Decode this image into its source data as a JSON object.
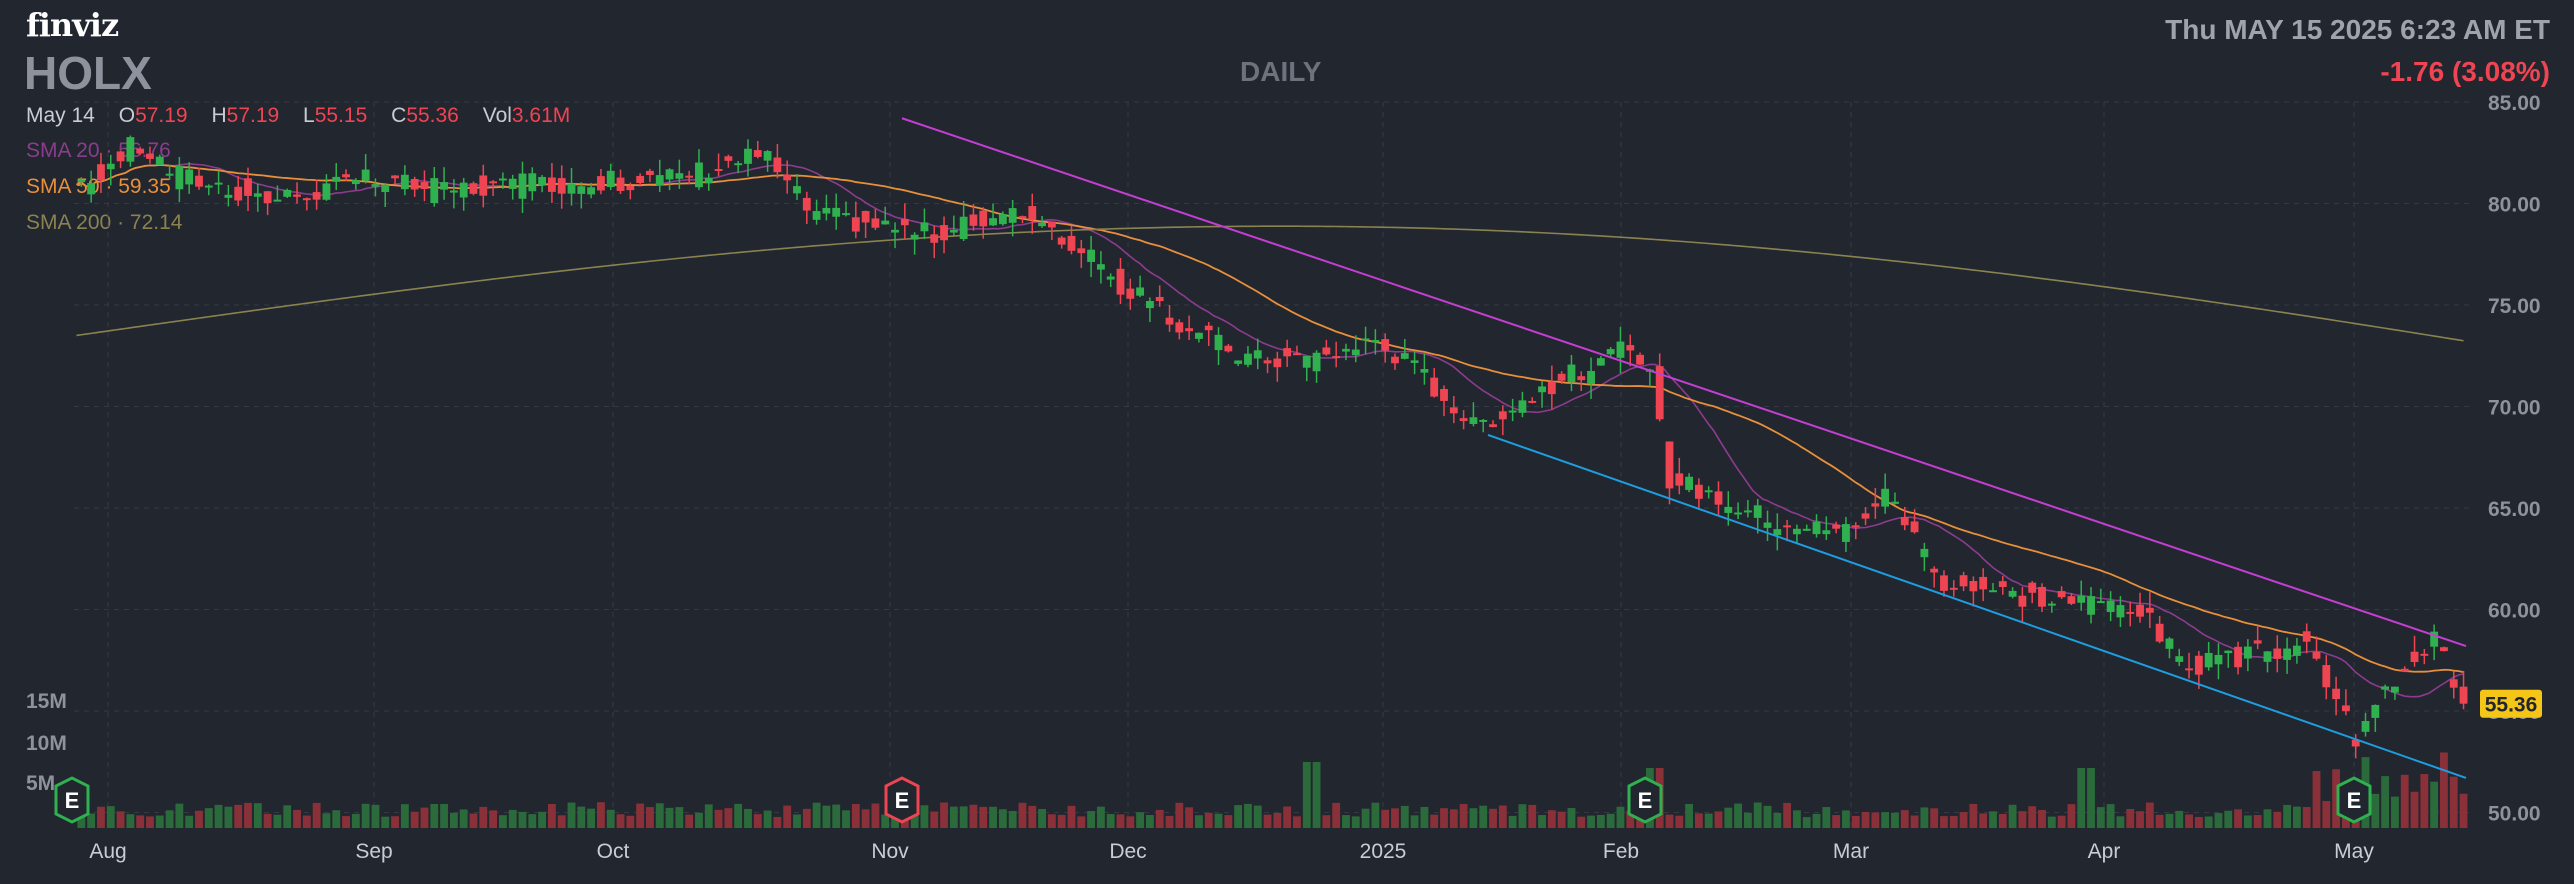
{
  "header": {
    "logo": "finviz",
    "ticker": "HOLX",
    "period": "DAILY",
    "datetime": "Thu MAY 15 2025 6:23 AM ET",
    "change": "-1.76 (3.08%)"
  },
  "ohlc": {
    "date": "May 14",
    "open": "57.19",
    "high": "57.19",
    "low": "55.15",
    "close": "55.36",
    "volume": "3.61M"
  },
  "sma": [
    {
      "label": "SMA 20",
      "value": "56.76",
      "color": "#8c3c8f"
    },
    {
      "label": "SMA 50",
      "value": "59.35",
      "color": "#e88f3a"
    },
    {
      "label": "SMA 200",
      "value": "72.14",
      "color": "#8a8350"
    }
  ],
  "colors": {
    "up": "#2fb14f",
    "down": "#ef4452",
    "resistance": "#c43fd1",
    "support": "#1e9de0",
    "last_price_bg": "#f5c518"
  },
  "chart_data": {
    "type": "candlestick",
    "y_ticks": [
      "85.00",
      "80.00",
      "75.00",
      "70.00",
      "65.00",
      "60.00",
      "55.00",
      "50.00"
    ],
    "ylim": [
      49.5,
      85
    ],
    "volume_ticks": [
      "15M",
      "10M",
      "5M"
    ],
    "x_months": [
      "Aug",
      "Sep",
      "Oct",
      "Nov",
      "Dec",
      "2025",
      "Feb",
      "Mar",
      "Apr",
      "May"
    ],
    "last_price": "55.36",
    "earnings_markers": [
      {
        "label": "E",
        "month_index": 0,
        "color": "#2fb14f"
      },
      {
        "label": "E",
        "month_index": 3,
        "color": "#ef4452"
      },
      {
        "label": "E",
        "month_index": 6,
        "color": "#2fb14f"
      },
      {
        "label": "E",
        "month_index": 9,
        "color": "#2fb14f"
      }
    ],
    "price_path": [
      [
        0,
        80.5
      ],
      [
        12,
        83
      ],
      [
        20,
        81.5
      ],
      [
        40,
        80.2
      ],
      [
        60,
        81.2
      ],
      [
        75,
        80.7
      ],
      [
        95,
        81
      ],
      [
        120,
        81.2
      ],
      [
        140,
        82.5
      ],
      [
        150,
        79.5
      ],
      [
        175,
        78.5
      ],
      [
        195,
        79.6
      ],
      [
        213,
        76
      ],
      [
        225,
        74
      ],
      [
        240,
        72.3
      ],
      [
        255,
        72.5
      ],
      [
        265,
        73.3
      ],
      [
        275,
        71.5
      ],
      [
        285,
        69
      ],
      [
        300,
        71
      ],
      [
        315,
        72.7
      ],
      [
        322,
        71.2
      ],
      [
        325,
        66.5
      ],
      [
        345,
        64.5
      ],
      [
        360,
        63.8
      ],
      [
        370,
        65.8
      ],
      [
        380,
        61.5
      ],
      [
        400,
        60.5
      ],
      [
        420,
        60.3
      ],
      [
        430,
        57.2
      ],
      [
        440,
        57.5
      ],
      [
        455,
        58.4
      ],
      [
        465,
        53.5
      ],
      [
        474,
        57
      ],
      [
        481,
        58.5
      ],
      [
        487,
        55.36
      ]
    ]
  }
}
